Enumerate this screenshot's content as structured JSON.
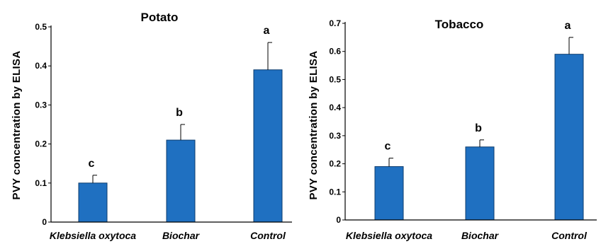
{
  "chart_data": [
    {
      "type": "bar",
      "title": "Potato",
      "ylabel": "PVY concentration by ELISA",
      "xlabel": "",
      "ylim": [
        0,
        0.5
      ],
      "yticks": [
        "0",
        "0.1",
        "0.2",
        "0.3",
        "0.4",
        "0.5"
      ],
      "categories": [
        "Klebsiella oxytoca",
        "Biochar",
        "Control"
      ],
      "values": [
        0.1,
        0.21,
        0.39
      ],
      "errors": [
        0.02,
        0.04,
        0.07
      ],
      "significance": [
        "c",
        "b",
        "a"
      ],
      "bar_color": "#1f70c1"
    },
    {
      "type": "bar",
      "title": "Tobacco",
      "ylabel": "PVY concentration by ELISA",
      "xlabel": "",
      "ylim": [
        0,
        0.7
      ],
      "yticks": [
        "0",
        "0.1",
        "0.2",
        "0.3",
        "0.4",
        "0.5",
        "0.6",
        "0.7"
      ],
      "categories": [
        "Klebsiella oxytoca",
        "Biochar",
        "Control"
      ],
      "values": [
        0.19,
        0.26,
        0.59
      ],
      "errors": [
        0.03,
        0.025,
        0.06
      ],
      "significance": [
        "c",
        "b",
        "a"
      ],
      "bar_color": "#1f70c1"
    }
  ]
}
